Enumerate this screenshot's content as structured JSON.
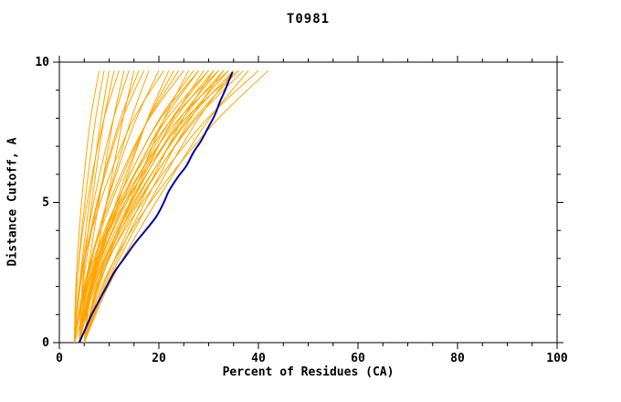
{
  "title": "T0981",
  "colors": {
    "background": "#ffffff",
    "axis": "#000000",
    "model_lines": "#ffa500",
    "highlight_line": "#0000a8"
  },
  "chart_data": {
    "type": "line",
    "title": "T0981",
    "xlabel": "Percent of Residues (CA)",
    "ylabel": "Distance Cutoff, A",
    "xlim": [
      0,
      100
    ],
    "ylim": [
      0,
      10
    ],
    "x_major_ticks": [
      0,
      20,
      40,
      60,
      80,
      100
    ],
    "x_tick_labels": [
      "0",
      "20",
      "40",
      "60",
      "80",
      "100"
    ],
    "x_minor_step": 5,
    "y_major_ticks": [
      0,
      5,
      10
    ],
    "y_tick_labels": [
      "0",
      "5",
      "10"
    ],
    "y_minor_step": 1,
    "grid": false,
    "legend": "none",
    "series_description": "Many orange model accuracy curves (percent of CA residues under distance cutoff) with one dark blue highlighted model curve",
    "orange_series_y": [
      0,
      2,
      4,
      6,
      8,
      9.7
    ],
    "orange_series": [
      [
        3,
        3.3,
        4,
        5,
        6.3,
        8
      ],
      [
        3,
        3.5,
        4.5,
        5.8,
        7.3,
        9
      ],
      [
        3,
        4,
        5.3,
        6.8,
        8.4,
        10
      ],
      [
        4,
        4.6,
        5.8,
        7.3,
        9,
        11
      ],
      [
        3,
        3.5,
        4.7,
        6.6,
        9,
        12
      ],
      [
        4,
        5.3,
        7,
        8.9,
        10.9,
        13
      ],
      [
        3,
        4,
        5.8,
        8.1,
        10.9,
        14
      ],
      [
        4,
        6.2,
        8.4,
        10.6,
        12.8,
        15
      ],
      [
        3,
        4.2,
        6.3,
        9,
        12.3,
        16
      ],
      [
        4,
        4.7,
        6.5,
        9.2,
        12.7,
        17
      ],
      [
        3,
        5.2,
        8,
        11.1,
        14.5,
        18
      ],
      [
        4,
        5.4,
        8,
        11.4,
        15.5,
        20
      ],
      [
        3,
        4,
        6.5,
        10.2,
        15,
        21
      ],
      [
        4,
        6.6,
        10,
        13.8,
        17.8,
        22
      ],
      [
        5,
        6.6,
        9.6,
        13.4,
        17.9,
        23
      ],
      [
        3,
        4.9,
        8.3,
        12.8,
        18,
        24
      ],
      [
        4,
        5.2,
        8,
        12.4,
        18.1,
        25
      ],
      [
        5,
        8,
        12,
        16.4,
        21.1,
        26
      ],
      [
        3,
        5.1,
        9.1,
        14.2,
        20.2,
        27
      ],
      [
        4,
        6.1,
        10.1,
        15.2,
        21.2,
        28
      ],
      [
        5,
        6.3,
        9.4,
        14.2,
        20.4,
        28
      ],
      [
        3,
        6.8,
        11.7,
        17.1,
        22.9,
        29
      ],
      [
        4,
        6.3,
        10.6,
        16.1,
        22.6,
        30
      ],
      [
        5,
        6.4,
        9.8,
        15,
        21.7,
        30
      ],
      [
        4,
        6.4,
        10.8,
        16.6,
        23.3,
        31
      ],
      [
        5,
        8.8,
        13.7,
        19.1,
        24.9,
        31
      ],
      [
        4,
        5.5,
        9.4,
        15.2,
        22.7,
        32
      ],
      [
        5,
        7.4,
        11.8,
        17.6,
        24.3,
        32
      ],
      [
        4,
        6.6,
        11.3,
        17.5,
        24.8,
        33
      ],
      [
        5,
        9.1,
        14.3,
        20.2,
        26.4,
        33
      ],
      [
        4,
        5.7,
        9.8,
        16,
        24.1,
        34
      ],
      [
        5,
        7.6,
        12.3,
        18.5,
        25.8,
        34
      ],
      [
        4,
        6.8,
        11.8,
        18.4,
        26.2,
        35
      ],
      [
        5,
        9.4,
        15,
        21.3,
        28,
        35
      ],
      [
        4,
        5.8,
        10.1,
        16.8,
        25.4,
        36
      ],
      [
        5,
        7.8,
        12.8,
        19.4,
        27.2,
        36
      ],
      [
        4,
        6.9,
        12.3,
        19.3,
        27.6,
        37
      ],
      [
        5,
        9.8,
        16,
        22.9,
        30.2,
        38
      ],
      [
        4,
        7.2,
        13.1,
        20.7,
        29.8,
        40
      ],
      [
        5,
        8.5,
        14.5,
        22.5,
        32,
        42
      ]
    ],
    "highlight_series": [
      [
        4,
        0
      ],
      [
        5,
        0.4
      ],
      [
        6.5,
        1
      ],
      [
        8,
        1.5
      ],
      [
        9.5,
        2
      ],
      [
        11,
        2.5
      ],
      [
        13,
        3
      ],
      [
        15,
        3.5
      ],
      [
        17.3,
        4
      ],
      [
        19.5,
        4.5
      ],
      [
        21,
        5
      ],
      [
        22,
        5.4
      ],
      [
        23.8,
        5.9
      ],
      [
        25.5,
        6.3
      ],
      [
        27,
        6.8
      ],
      [
        28.5,
        7.2
      ],
      [
        30,
        7.7
      ],
      [
        31.2,
        8.1
      ],
      [
        32.3,
        8.6
      ],
      [
        33.3,
        9
      ],
      [
        34.2,
        9.4
      ],
      [
        34.8,
        9.65
      ]
    ]
  }
}
